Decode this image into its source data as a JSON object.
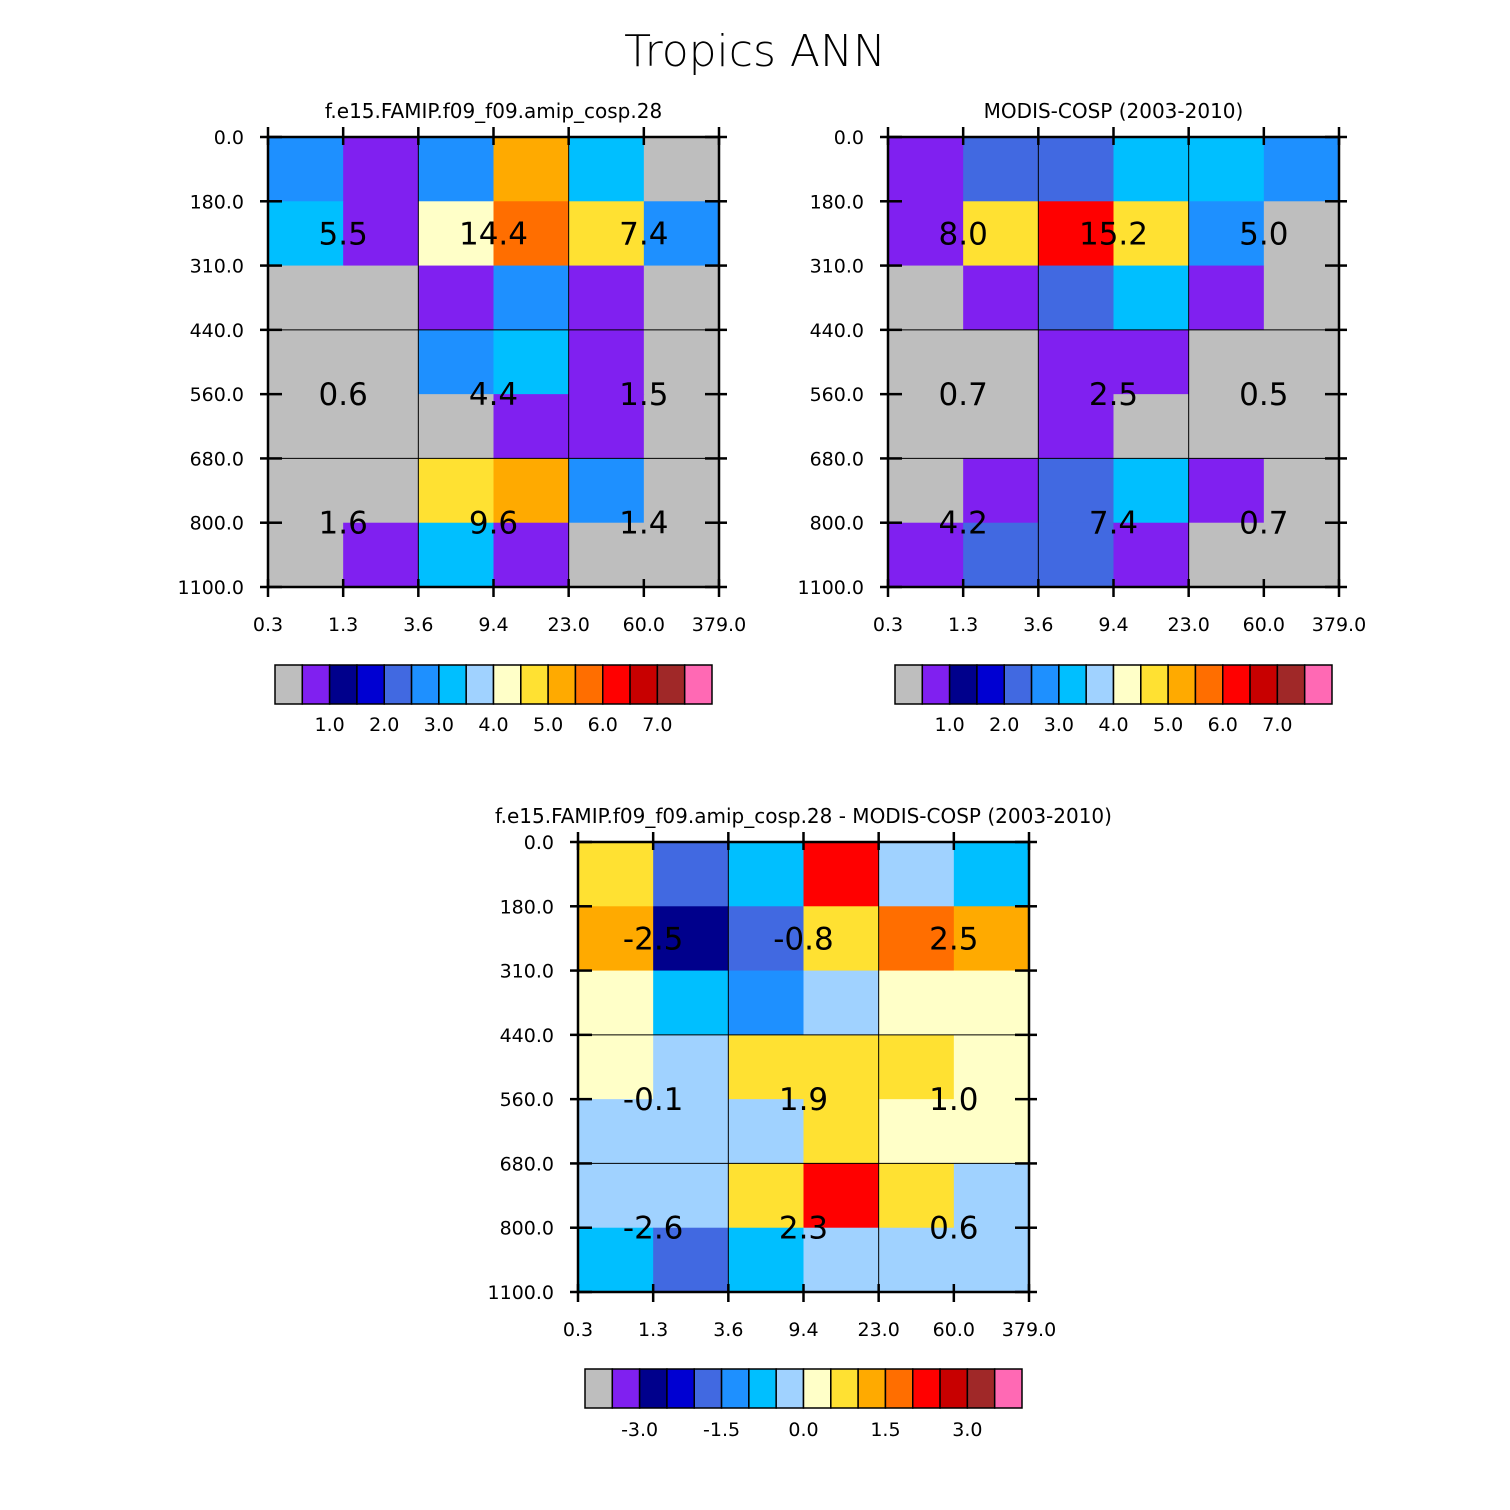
{
  "title": "Tropics ANN",
  "chart_data": [
    {
      "type": "heatmap",
      "title": "f.e15.FAMIP.f09_f09.amip_cosp.28",
      "xticks": [
        "0.3",
        "1.3",
        "3.6",
        "9.4",
        "23.0",
        "60.0",
        "379.0"
      ],
      "yticks": [
        "0.0",
        "180.0",
        "310.0",
        "440.0",
        "560.0",
        "680.0",
        "800.0",
        "1100.0"
      ],
      "cells": [
        [
          5,
          1,
          5,
          10,
          6,
          0
        ],
        [
          6,
          1,
          8,
          11,
          9,
          5
        ],
        [
          0,
          0,
          1,
          5,
          1,
          0
        ],
        [
          0,
          0,
          5,
          6,
          1,
          0
        ],
        [
          0,
          0,
          0,
          1,
          1,
          0
        ],
        [
          0,
          0,
          9,
          10,
          5,
          0
        ],
        [
          0,
          1,
          6,
          1,
          0,
          0
        ]
      ],
      "blocks": [
        [
          "5.5",
          "14.4",
          "7.4"
        ],
        [
          "0.6",
          "4.4",
          "1.5"
        ],
        [
          "1.6",
          "9.6",
          "1.4"
        ]
      ],
      "colorbar": {
        "labels": [
          "1.0",
          "2.0",
          "3.0",
          "4.0",
          "5.0",
          "6.0",
          "7.0"
        ],
        "colors": [
          "#bebebe",
          "#8020f0",
          "#00008c",
          "#0000d2",
          "#4169e1",
          "#1e90ff",
          "#00bfff",
          "#a0d2ff",
          "#ffffc8",
          "#ffe132",
          "#ffaa00",
          "#ff6e00",
          "#ff0000",
          "#c80000",
          "#a02828",
          "#ff69b4"
        ]
      }
    },
    {
      "type": "heatmap",
      "title": "MODIS-COSP (2003-2010)",
      "xticks": [
        "0.3",
        "1.3",
        "3.6",
        "9.4",
        "23.0",
        "60.0",
        "379.0"
      ],
      "yticks": [
        "0.0",
        "180.0",
        "310.0",
        "440.0",
        "560.0",
        "680.0",
        "800.0",
        "1100.0"
      ],
      "cells": [
        [
          1,
          4,
          4,
          6,
          6,
          5
        ],
        [
          1,
          9,
          12,
          9,
          5,
          0
        ],
        [
          0,
          1,
          4,
          6,
          1,
          0
        ],
        [
          0,
          0,
          1,
          1,
          0,
          0
        ],
        [
          0,
          0,
          1,
          0,
          0,
          0
        ],
        [
          0,
          1,
          4,
          6,
          1,
          0
        ],
        [
          1,
          4,
          4,
          1,
          0,
          0
        ]
      ],
      "blocks": [
        [
          "8.0",
          "15.2",
          "5.0"
        ],
        [
          "0.7",
          "2.5",
          "0.5"
        ],
        [
          "4.2",
          "7.4",
          "0.7"
        ]
      ],
      "colorbar": {
        "labels": [
          "1.0",
          "2.0",
          "3.0",
          "4.0",
          "5.0",
          "6.0",
          "7.0"
        ],
        "colors": [
          "#bebebe",
          "#8020f0",
          "#00008c",
          "#0000d2",
          "#4169e1",
          "#1e90ff",
          "#00bfff",
          "#a0d2ff",
          "#ffffc8",
          "#ffe132",
          "#ffaa00",
          "#ff6e00",
          "#ff0000",
          "#c80000",
          "#a02828",
          "#ff69b4"
        ]
      }
    },
    {
      "type": "heatmap",
      "title": "f.e15.FAMIP.f09_f09.amip_cosp.28 - MODIS-COSP (2003-2010)",
      "xticks": [
        "0.3",
        "1.3",
        "3.6",
        "9.4",
        "23.0",
        "60.0",
        "379.0"
      ],
      "yticks": [
        "0.0",
        "180.0",
        "310.0",
        "440.0",
        "560.0",
        "680.0",
        "800.0",
        "1100.0"
      ],
      "cells": [
        [
          9,
          4,
          6,
          12,
          7,
          6
        ],
        [
          10,
          2,
          4,
          9,
          11,
          10
        ],
        [
          8,
          6,
          5,
          7,
          8,
          8
        ],
        [
          8,
          7,
          9,
          9,
          9,
          8
        ],
        [
          7,
          7,
          7,
          9,
          8,
          8
        ],
        [
          7,
          7,
          9,
          12,
          9,
          7
        ],
        [
          6,
          4,
          6,
          7,
          7,
          7
        ]
      ],
      "blocks": [
        [
          "-2.5",
          "-0.8",
          "2.5"
        ],
        [
          "-0.1",
          "1.9",
          "1.0"
        ],
        [
          "-2.6",
          "2.3",
          "0.6"
        ]
      ],
      "colorbar": {
        "labels": [
          "-3.0",
          "-1.5",
          "0.0",
          "1.5",
          "3.0"
        ],
        "colors": [
          "#bebebe",
          "#8020f0",
          "#00008c",
          "#0000d2",
          "#4169e1",
          "#1e90ff",
          "#00bfff",
          "#a0d2ff",
          "#ffffc8",
          "#ffe132",
          "#ffaa00",
          "#ff6e00",
          "#ff0000",
          "#c80000",
          "#a02828",
          "#ff69b4"
        ]
      }
    }
  ]
}
